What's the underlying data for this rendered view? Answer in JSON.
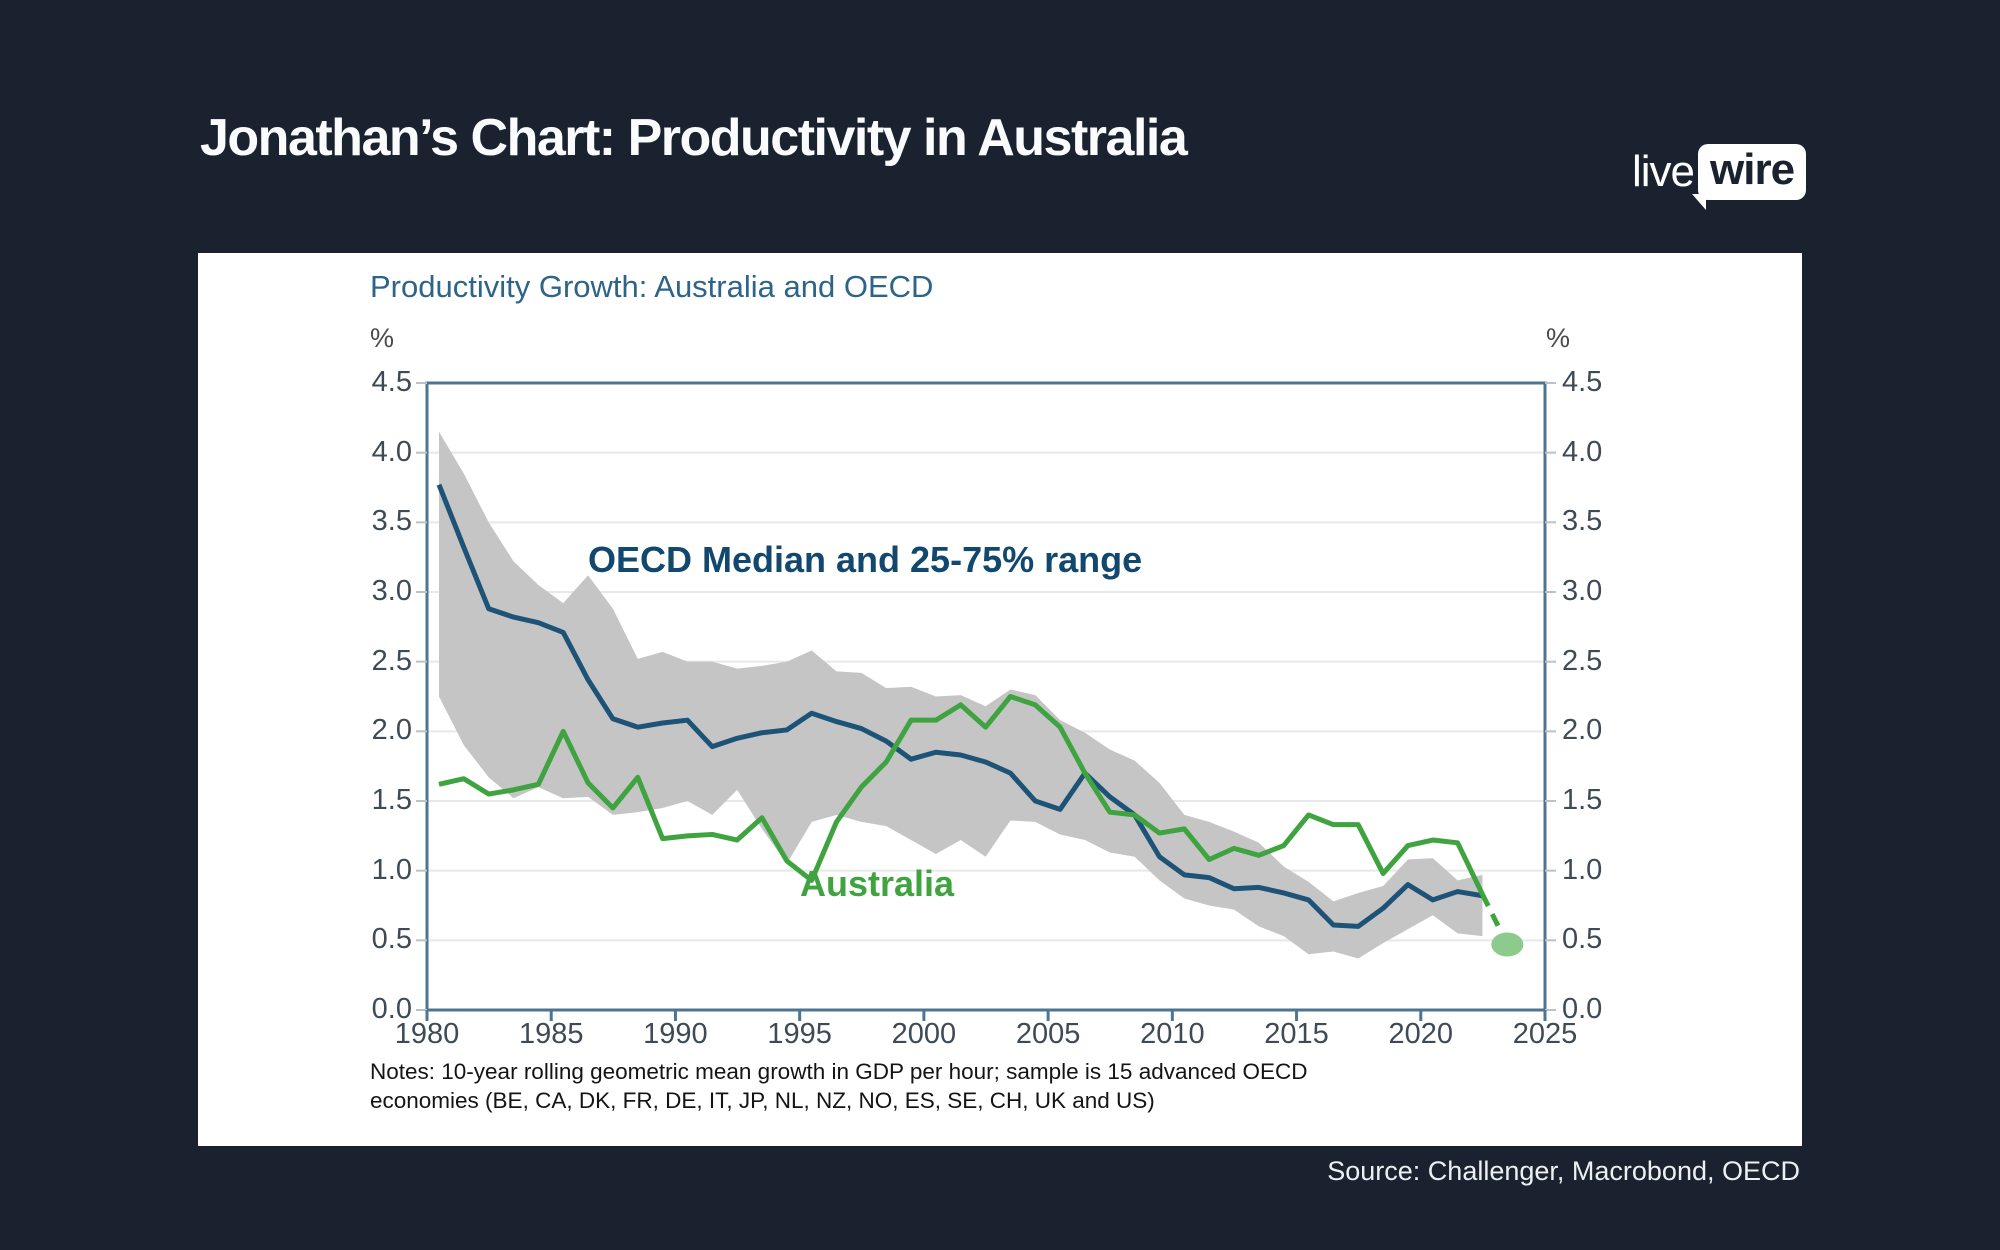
{
  "header": {
    "title": "Jonathan’s Chart: Productivity in Australia",
    "logo_live": "live",
    "logo_wire": "wire"
  },
  "footer": {
    "source": "Source: Challenger, Macrobond, OECD"
  },
  "chart": {
    "title": "Productivity Growth: Australia and OECD",
    "unit_left": "%",
    "unit_right": "%",
    "annotation_oecd": "OECD Median and 25-75% range",
    "annotation_australia": "Australia",
    "notes_line1": "Notes: 10-year rolling geometric mean growth in GDP per hour; sample is 15 advanced OECD",
    "notes_line2": "economies (BE, CA, DK, FR, DE, IT, JP, NL, NZ, NO, ES, SE, CH, UK and US)"
  },
  "colors": {
    "background": "#1a2230",
    "panel": "#ffffff",
    "oecd_line": "#1e5378",
    "australia_line": "#3fa33f",
    "band": "#c5c5c6",
    "grid": "#e7e8ea",
    "frame": "#4e7590",
    "end_dot": "#8ccb8c"
  },
  "chart_data": {
    "type": "line",
    "title": "Productivity Growth: Australia and OECD",
    "ylabel": "%",
    "xlim": [
      1980,
      2025
    ],
    "ylim": [
      0,
      4.5
    ],
    "grid": "horizontal",
    "x_ticks": [
      "1980",
      "1985",
      "1990",
      "1995",
      "2000",
      "2005",
      "2010",
      "2015",
      "2020",
      "2025"
    ],
    "y_ticks": [
      "0.0",
      "0.5",
      "1.0",
      "1.5",
      "2.0",
      "2.5",
      "3.0",
      "3.5",
      "4.0",
      "4.5"
    ],
    "x": [
      1980,
      1981,
      1982,
      1983,
      1984,
      1985,
      1986,
      1987,
      1988,
      1989,
      1990,
      1991,
      1992,
      1993,
      1994,
      1995,
      1996,
      1997,
      1998,
      1999,
      2000,
      2001,
      2002,
      2003,
      2004,
      2005,
      2006,
      2007,
      2008,
      2009,
      2010,
      2011,
      2012,
      2013,
      2014,
      2015,
      2016,
      2017,
      2018,
      2019,
      2020,
      2021,
      2022
    ],
    "series": [
      {
        "name": "OECD Median",
        "color": "#1e5378",
        "values": [
          3.77,
          3.32,
          2.88,
          2.82,
          2.78,
          2.71,
          2.37,
          2.09,
          2.03,
          2.06,
          2.08,
          1.89,
          1.95,
          1.99,
          2.01,
          2.13,
          2.07,
          2.02,
          1.93,
          1.8,
          1.85,
          1.83,
          1.78,
          1.7,
          1.5,
          1.44,
          1.7,
          1.53,
          1.4,
          1.1,
          0.97,
          0.95,
          0.87,
          0.88,
          0.84,
          0.79,
          0.61,
          0.6,
          0.73,
          0.9,
          0.79,
          0.85,
          0.82
        ]
      },
      {
        "name": "Australia",
        "color": "#3fa33f",
        "values": [
          1.62,
          1.66,
          1.55,
          1.58,
          1.62,
          2.0,
          1.63,
          1.45,
          1.67,
          1.23,
          1.25,
          1.26,
          1.22,
          1.38,
          1.07,
          0.93,
          1.35,
          1.6,
          1.78,
          2.08,
          2.08,
          2.19,
          2.03,
          2.25,
          2.19,
          2.03,
          1.7,
          1.42,
          1.4,
          1.27,
          1.3,
          1.08,
          1.16,
          1.11,
          1.18,
          1.4,
          1.33,
          1.33,
          0.98,
          1.18,
          1.22,
          1.2,
          0.83
        ],
        "dashed_extension": {
          "x": 2023,
          "value": 0.47
        }
      }
    ],
    "band": {
      "name": "OECD 25-75% range",
      "color": "#c5c5c6",
      "upper": [
        4.15,
        3.85,
        3.5,
        3.22,
        3.05,
        2.92,
        3.12,
        2.88,
        2.52,
        2.57,
        2.5,
        2.5,
        2.45,
        2.47,
        2.5,
        2.58,
        2.43,
        2.42,
        2.31,
        2.32,
        2.25,
        2.26,
        2.18,
        2.3,
        2.26,
        2.08,
        1.99,
        1.87,
        1.79,
        1.63,
        1.4,
        1.35,
        1.28,
        1.2,
        1.03,
        0.92,
        0.78,
        0.84,
        0.89,
        1.08,
        1.09,
        0.93,
        0.97
      ],
      "lower": [
        2.25,
        1.9,
        1.67,
        1.52,
        1.6,
        1.52,
        1.53,
        1.4,
        1.42,
        1.45,
        1.5,
        1.4,
        1.58,
        1.3,
        1.05,
        1.35,
        1.4,
        1.35,
        1.32,
        1.22,
        1.12,
        1.22,
        1.1,
        1.36,
        1.35,
        1.26,
        1.22,
        1.13,
        1.1,
        0.93,
        0.8,
        0.75,
        0.72,
        0.6,
        0.53,
        0.4,
        0.42,
        0.37,
        0.48,
        0.58,
        0.68,
        0.55,
        0.53
      ]
    },
    "annotations": [
      "OECD Median and 25-75% range",
      "Australia"
    ],
    "legend_position": "inline-annotations"
  }
}
